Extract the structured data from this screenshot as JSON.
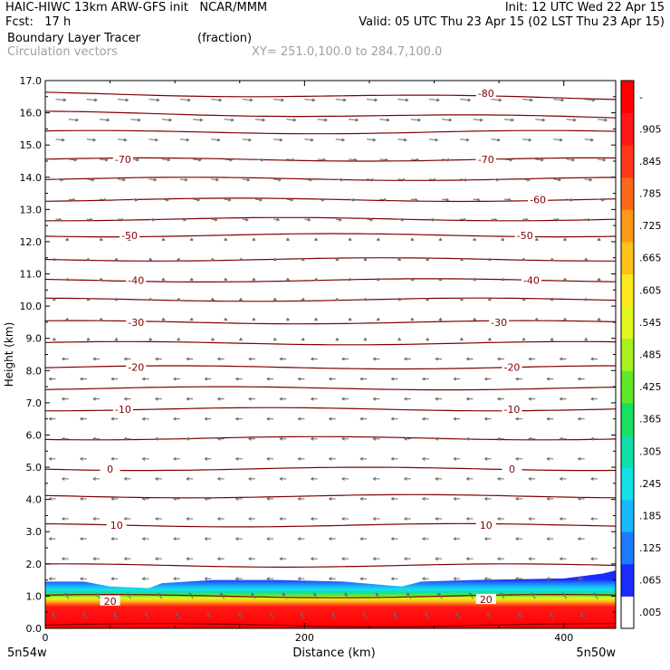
{
  "header": {
    "line1_left": "HAIC-HIWC 13km ARW-GFS init   NCAR/MMM",
    "line1_right": "Init: 12 UTC Wed 22 Apr 15",
    "line2_left": "Fcst:   17 h",
    "line2_right": "Valid: 05 UTC Thu 23 Apr 15 (02 LST Thu 23 Apr 15)",
    "field_name": "Boundary Layer Tracer",
    "field_units": "(fraction)",
    "vector_name": "Circulation vectors",
    "xy_range": "XY= 251.0,100.0 to 284.7,100.0"
  },
  "chart_data": {
    "type": "heatmap",
    "xlabel": "Distance (km)",
    "ylabel": "Height (km)",
    "xlim": [
      0,
      440
    ],
    "ylim": [
      0,
      17
    ],
    "xticks": [
      0,
      200,
      400
    ],
    "yticks": [
      "0.0",
      "1.0",
      "2.0",
      "3.0",
      "4.0",
      "5.0",
      "6.0",
      "7.0",
      "8.0",
      "9.0",
      "10.0",
      "11.0",
      "12.0",
      "13.0",
      "14.0",
      "15.0",
      "16.0",
      "17.0"
    ],
    "x_end_labels": {
      "left": "5n54w",
      "right": "5n50w"
    },
    "colorbar": {
      "labels": [
        ".005",
        ".065",
        ".125",
        ".185",
        ".245",
        ".305",
        ".365",
        ".425",
        ".485",
        ".545",
        ".605",
        ".665",
        ".725",
        ".785",
        ".845",
        ".905",
        "-"
      ],
      "colors": [
        "#ffffff",
        "#1a2bff",
        "#1e7bff",
        "#18b8ff",
        "#14e0e8",
        "#10e0a8",
        "#18e060",
        "#60e828",
        "#a8f020",
        "#e0f820",
        "#ffe820",
        "#ffc018",
        "#ff9818",
        "#ff6818",
        "#ff3818",
        "#ff1818",
        "#ff0000"
      ]
    },
    "tracer_top_km": [
      [
        0,
        1.45
      ],
      [
        30,
        1.45
      ],
      [
        50,
        1.3
      ],
      [
        80,
        1.25
      ],
      [
        90,
        1.4
      ],
      [
        130,
        1.5
      ],
      [
        180,
        1.5
      ],
      [
        230,
        1.45
      ],
      [
        260,
        1.35
      ],
      [
        275,
        1.3
      ],
      [
        290,
        1.45
      ],
      [
        330,
        1.5
      ],
      [
        400,
        1.55
      ],
      [
        430,
        1.7
      ],
      [
        440,
        1.8
      ]
    ],
    "isotherm_labels": [
      {
        "text": "20",
        "x": 50,
        "y": 0.85
      },
      {
        "text": "20",
        "x": 340,
        "y": 0.9
      },
      {
        "text": "10",
        "x": 55,
        "y": 3.2
      },
      {
        "text": "10",
        "x": 340,
        "y": 3.2
      },
      {
        "text": "0",
        "x": 50,
        "y": 4.95
      },
      {
        "text": "0",
        "x": 360,
        "y": 4.95
      },
      {
        "text": "-10",
        "x": 60,
        "y": 6.8
      },
      {
        "text": "-10",
        "x": 360,
        "y": 6.8
      },
      {
        "text": "-20",
        "x": 70,
        "y": 8.1
      },
      {
        "text": "-20",
        "x": 360,
        "y": 8.1
      },
      {
        "text": "-30",
        "x": 70,
        "y": 9.5
      },
      {
        "text": "-30",
        "x": 350,
        "y": 9.5
      },
      {
        "text": "-40",
        "x": 70,
        "y": 10.8
      },
      {
        "text": "-40",
        "x": 375,
        "y": 10.8
      },
      {
        "text": "-50",
        "x": 65,
        "y": 12.2
      },
      {
        "text": "-50",
        "x": 370,
        "y": 12.2
      },
      {
        "text": "-60",
        "x": 380,
        "y": 13.3
      },
      {
        "text": "-70",
        "x": 60,
        "y": 14.55
      },
      {
        "text": "-70",
        "x": 340,
        "y": 14.55
      },
      {
        "text": "-80",
        "x": 340,
        "y": 16.6
      }
    ]
  }
}
